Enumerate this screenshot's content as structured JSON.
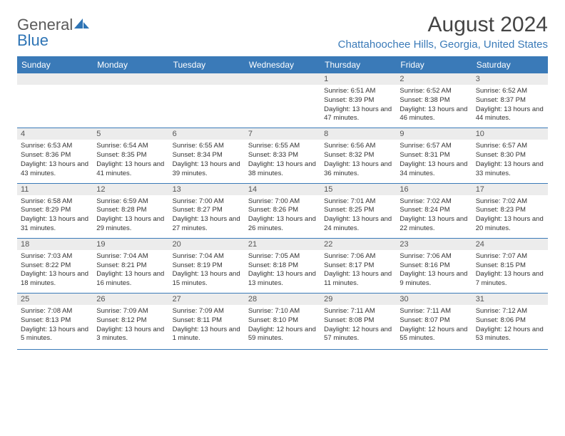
{
  "logo": {
    "text_a": "General",
    "text_b": "Blue"
  },
  "header": {
    "title": "August 2024",
    "location": "Chattahoochee Hills, Georgia, United States"
  },
  "colors": {
    "header_bg": "#3a7ab8",
    "header_text": "#ffffff",
    "daynum_bg": "#ececec",
    "rule": "#3a7ab8",
    "location_text": "#3a7ab8"
  },
  "daysOfWeek": [
    "Sunday",
    "Monday",
    "Tuesday",
    "Wednesday",
    "Thursday",
    "Friday",
    "Saturday"
  ],
  "weeks": [
    [
      {
        "n": "",
        "sunrise": "",
        "sunset": "",
        "daylight": ""
      },
      {
        "n": "",
        "sunrise": "",
        "sunset": "",
        "daylight": ""
      },
      {
        "n": "",
        "sunrise": "",
        "sunset": "",
        "daylight": ""
      },
      {
        "n": "",
        "sunrise": "",
        "sunset": "",
        "daylight": ""
      },
      {
        "n": "1",
        "sunrise": "6:51 AM",
        "sunset": "8:39 PM",
        "daylight": "13 hours and 47 minutes."
      },
      {
        "n": "2",
        "sunrise": "6:52 AM",
        "sunset": "8:38 PM",
        "daylight": "13 hours and 46 minutes."
      },
      {
        "n": "3",
        "sunrise": "6:52 AM",
        "sunset": "8:37 PM",
        "daylight": "13 hours and 44 minutes."
      }
    ],
    [
      {
        "n": "4",
        "sunrise": "6:53 AM",
        "sunset": "8:36 PM",
        "daylight": "13 hours and 43 minutes."
      },
      {
        "n": "5",
        "sunrise": "6:54 AM",
        "sunset": "8:35 PM",
        "daylight": "13 hours and 41 minutes."
      },
      {
        "n": "6",
        "sunrise": "6:55 AM",
        "sunset": "8:34 PM",
        "daylight": "13 hours and 39 minutes."
      },
      {
        "n": "7",
        "sunrise": "6:55 AM",
        "sunset": "8:33 PM",
        "daylight": "13 hours and 38 minutes."
      },
      {
        "n": "8",
        "sunrise": "6:56 AM",
        "sunset": "8:32 PM",
        "daylight": "13 hours and 36 minutes."
      },
      {
        "n": "9",
        "sunrise": "6:57 AM",
        "sunset": "8:31 PM",
        "daylight": "13 hours and 34 minutes."
      },
      {
        "n": "10",
        "sunrise": "6:57 AM",
        "sunset": "8:30 PM",
        "daylight": "13 hours and 33 minutes."
      }
    ],
    [
      {
        "n": "11",
        "sunrise": "6:58 AM",
        "sunset": "8:29 PM",
        "daylight": "13 hours and 31 minutes."
      },
      {
        "n": "12",
        "sunrise": "6:59 AM",
        "sunset": "8:28 PM",
        "daylight": "13 hours and 29 minutes."
      },
      {
        "n": "13",
        "sunrise": "7:00 AM",
        "sunset": "8:27 PM",
        "daylight": "13 hours and 27 minutes."
      },
      {
        "n": "14",
        "sunrise": "7:00 AM",
        "sunset": "8:26 PM",
        "daylight": "13 hours and 26 minutes."
      },
      {
        "n": "15",
        "sunrise": "7:01 AM",
        "sunset": "8:25 PM",
        "daylight": "13 hours and 24 minutes."
      },
      {
        "n": "16",
        "sunrise": "7:02 AM",
        "sunset": "8:24 PM",
        "daylight": "13 hours and 22 minutes."
      },
      {
        "n": "17",
        "sunrise": "7:02 AM",
        "sunset": "8:23 PM",
        "daylight": "13 hours and 20 minutes."
      }
    ],
    [
      {
        "n": "18",
        "sunrise": "7:03 AM",
        "sunset": "8:22 PM",
        "daylight": "13 hours and 18 minutes."
      },
      {
        "n": "19",
        "sunrise": "7:04 AM",
        "sunset": "8:21 PM",
        "daylight": "13 hours and 16 minutes."
      },
      {
        "n": "20",
        "sunrise": "7:04 AM",
        "sunset": "8:19 PM",
        "daylight": "13 hours and 15 minutes."
      },
      {
        "n": "21",
        "sunrise": "7:05 AM",
        "sunset": "8:18 PM",
        "daylight": "13 hours and 13 minutes."
      },
      {
        "n": "22",
        "sunrise": "7:06 AM",
        "sunset": "8:17 PM",
        "daylight": "13 hours and 11 minutes."
      },
      {
        "n": "23",
        "sunrise": "7:06 AM",
        "sunset": "8:16 PM",
        "daylight": "13 hours and 9 minutes."
      },
      {
        "n": "24",
        "sunrise": "7:07 AM",
        "sunset": "8:15 PM",
        "daylight": "13 hours and 7 minutes."
      }
    ],
    [
      {
        "n": "25",
        "sunrise": "7:08 AM",
        "sunset": "8:13 PM",
        "daylight": "13 hours and 5 minutes."
      },
      {
        "n": "26",
        "sunrise": "7:09 AM",
        "sunset": "8:12 PM",
        "daylight": "13 hours and 3 minutes."
      },
      {
        "n": "27",
        "sunrise": "7:09 AM",
        "sunset": "8:11 PM",
        "daylight": "13 hours and 1 minute."
      },
      {
        "n": "28",
        "sunrise": "7:10 AM",
        "sunset": "8:10 PM",
        "daylight": "12 hours and 59 minutes."
      },
      {
        "n": "29",
        "sunrise": "7:11 AM",
        "sunset": "8:08 PM",
        "daylight": "12 hours and 57 minutes."
      },
      {
        "n": "30",
        "sunrise": "7:11 AM",
        "sunset": "8:07 PM",
        "daylight": "12 hours and 55 minutes."
      },
      {
        "n": "31",
        "sunrise": "7:12 AM",
        "sunset": "8:06 PM",
        "daylight": "12 hours and 53 minutes."
      }
    ]
  ],
  "labels": {
    "sunrise": "Sunrise:",
    "sunset": "Sunset:",
    "daylight": "Daylight:"
  }
}
